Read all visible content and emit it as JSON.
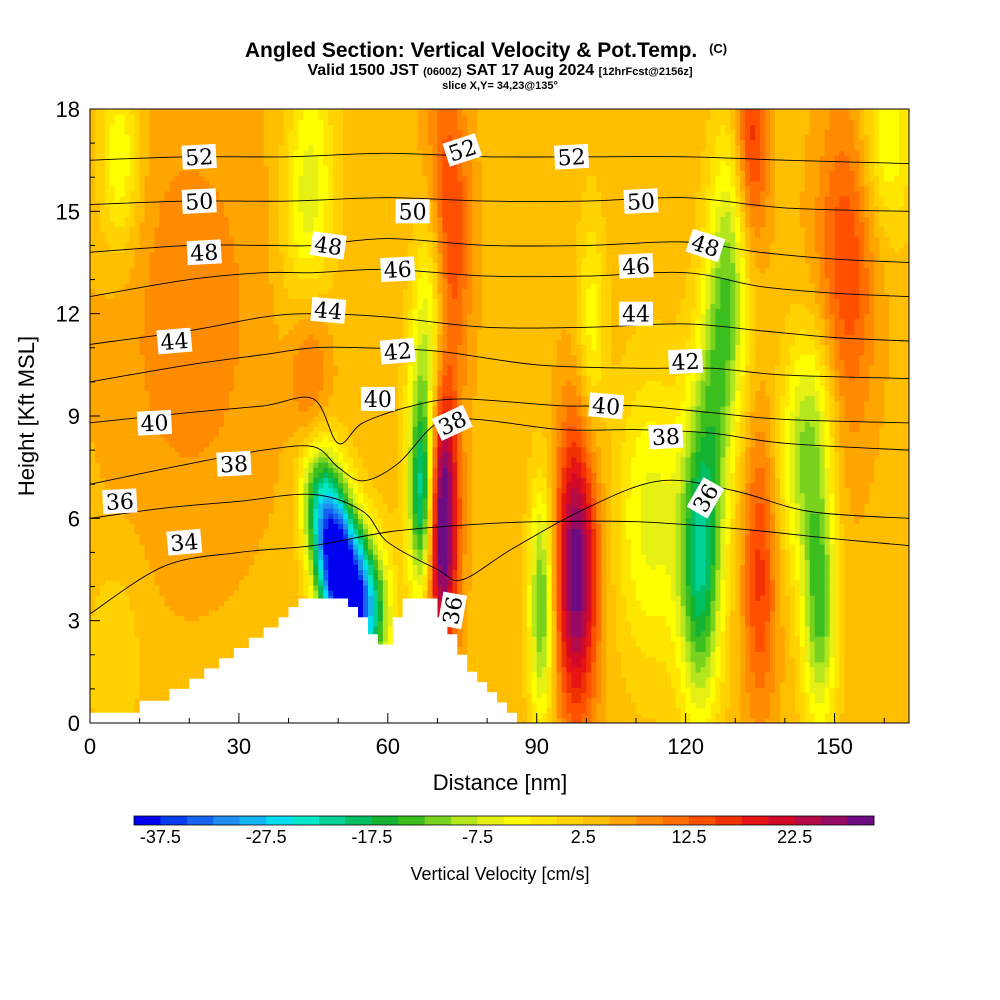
{
  "chart_data": {
    "type": "heatmap",
    "title": {
      "main": "Angled Section: Vertical Velocity & Pot.Temp.",
      "main_suffix": "(C)",
      "line2_a": "Valid 1500 JST",
      "line2_small1": "(0600Z)",
      "line2_b": "SAT 17 Aug 2024",
      "line2_small2": "[12hrFcst@2156z]",
      "line3": "slice X,Y= 34,23@135°"
    },
    "xlabel": "Distance [nm]",
    "ylabel": "Height [Kft MSL]",
    "xlim": [
      0,
      165
    ],
    "ylim": [
      0,
      18
    ],
    "x_ticks": [
      0,
      30,
      60,
      90,
      120,
      150
    ],
    "y_ticks": [
      0,
      3,
      6,
      9,
      12,
      15,
      18
    ],
    "colorbar": {
      "label": "Vertical Velocity [cm/s]",
      "tick_labels": [
        "-37.5",
        "-27.5",
        "-17.5",
        "-7.5",
        "2.5",
        "12.5",
        "22.5"
      ],
      "min": -40,
      "max": 30,
      "step": 2.5,
      "colors": [
        "#0000f0",
        "#0a3cf0",
        "#1464f0",
        "#1e8cf0",
        "#14b4f0",
        "#00dcf0",
        "#00e6c8",
        "#00d296",
        "#00be64",
        "#14b432",
        "#3cbe1e",
        "#78d21e",
        "#b4e61e",
        "#e6f014",
        "#ffff00",
        "#ffe600",
        "#ffd200",
        "#ffbe00",
        "#ffa500",
        "#ff8c00",
        "#ff6e00",
        "#ff5000",
        "#f03200",
        "#e61414",
        "#d20a28",
        "#b40a46",
        "#960a64",
        "#6e0a82"
      ]
    },
    "background_w": 4,
    "w_features": [
      {
        "x": 50,
        "z": 4.5,
        "amp": -40,
        "sx": 3.0,
        "sz": 1.8,
        "tilt": -0.5
      },
      {
        "x": 55,
        "z": 3.5,
        "amp": -30,
        "sx": 3.5,
        "sz": 1.5,
        "tilt": -0.3
      },
      {
        "x": 46,
        "z": 6.5,
        "amp": -18,
        "sx": 3.0,
        "sz": 1.6,
        "tilt": -0.6
      },
      {
        "x": 67,
        "z": 6.5,
        "amp": -22,
        "sx": 1.8,
        "sz": 2.0,
        "tilt": 0.0
      },
      {
        "x": 71,
        "z": 6.0,
        "amp": 30,
        "sx": 2.2,
        "sz": 2.8,
        "tilt": 0.0
      },
      {
        "x": 72,
        "z": 15.0,
        "amp": 14,
        "sx": 3.0,
        "sz": 3.0,
        "tilt": -0.15
      },
      {
        "x": 68,
        "z": 11.0,
        "amp": -14,
        "sx": 2.5,
        "sz": 3.5,
        "tilt": 0.3
      },
      {
        "x": 44,
        "z": 15.0,
        "amp": -12,
        "sx": 3.5,
        "sz": 3.0,
        "tilt": 0.15
      },
      {
        "x": 44,
        "z": 10.0,
        "amp": 10,
        "sx": 3.0,
        "sz": 2.5,
        "tilt": 0.0
      },
      {
        "x": 91,
        "z": 3.5,
        "amp": -18,
        "sx": 1.8,
        "sz": 2.5,
        "tilt": 0.0
      },
      {
        "x": 98,
        "z": 4.5,
        "amp": 26,
        "sx": 3.0,
        "sz": 3.0,
        "tilt": 0.0
      },
      {
        "x": 101,
        "z": 11.5,
        "amp": -8,
        "sx": 2.0,
        "sz": 2.5,
        "tilt": 0.0
      },
      {
        "x": 113,
        "z": 6.0,
        "amp": -10,
        "sx": 5.0,
        "sz": 3.0,
        "tilt": 0.0
      },
      {
        "x": 123,
        "z": 4.5,
        "amp": -20,
        "sx": 3.0,
        "sz": 3.0,
        "tilt": 0.0
      },
      {
        "x": 128,
        "z": 12.0,
        "amp": -18,
        "sx": 3.5,
        "sz": 4.5,
        "tilt": 0.5
      },
      {
        "x": 133,
        "z": 17.0,
        "amp": 18,
        "sx": 2.5,
        "sz": 2.5,
        "tilt": 0.0
      },
      {
        "x": 135,
        "z": 4.5,
        "amp": 12,
        "sx": 2.5,
        "sz": 3.0,
        "tilt": 0.0
      },
      {
        "x": 145,
        "z": 8.5,
        "amp": -16,
        "sx": 4.0,
        "sz": 2.5,
        "tilt": 0.4
      },
      {
        "x": 147,
        "z": 3.5,
        "amp": -18,
        "sx": 2.5,
        "sz": 2.5,
        "tilt": 0.0
      },
      {
        "x": 152,
        "z": 13.0,
        "amp": 12,
        "sx": 4.5,
        "sz": 4.0,
        "tilt": 0.3
      },
      {
        "x": 20,
        "z": 12.0,
        "amp": 5,
        "sx": 12.0,
        "sz": 5.0,
        "tilt": 0.0
      },
      {
        "x": 160,
        "z": 17.0,
        "amp": -10,
        "sx": 4.0,
        "sz": 2.0,
        "tilt": 0.0
      },
      {
        "x": 6,
        "z": 16.5,
        "amp": -10,
        "sx": 3.0,
        "sz": 2.0,
        "tilt": 0.0
      },
      {
        "x": 5,
        "z": 2.0,
        "amp": -4,
        "sx": 4.0,
        "sz": 2.0,
        "tilt": 0.0
      }
    ],
    "terrain": [
      [
        0,
        0.3
      ],
      [
        10,
        0.3
      ],
      [
        10,
        0.65
      ],
      [
        16,
        0.65
      ],
      [
        16,
        1.0
      ],
      [
        20,
        1.0
      ],
      [
        20,
        1.3
      ],
      [
        23,
        1.3
      ],
      [
        23,
        1.6
      ],
      [
        26,
        1.6
      ],
      [
        26,
        1.9
      ],
      [
        29,
        1.9
      ],
      [
        29,
        2.2
      ],
      [
        32,
        2.2
      ],
      [
        32,
        2.5
      ],
      [
        35,
        2.5
      ],
      [
        35,
        2.8
      ],
      [
        38,
        2.8
      ],
      [
        38,
        3.1
      ],
      [
        40,
        3.1
      ],
      [
        40,
        3.4
      ],
      [
        42,
        3.4
      ],
      [
        42,
        3.65
      ],
      [
        52,
        3.65
      ],
      [
        52,
        3.4
      ],
      [
        54,
        3.4
      ],
      [
        54,
        3.1
      ],
      [
        56,
        3.1
      ],
      [
        56,
        2.6
      ],
      [
        58,
        2.6
      ],
      [
        58,
        2.3
      ],
      [
        61,
        2.3
      ],
      [
        61,
        3.1
      ],
      [
        63,
        3.1
      ],
      [
        63,
        3.65
      ],
      [
        70,
        3.65
      ],
      [
        70,
        3.1
      ],
      [
        72,
        3.1
      ],
      [
        72,
        2.6
      ],
      [
        74,
        2.6
      ],
      [
        74,
        2.0
      ],
      [
        76,
        2.0
      ],
      [
        76,
        1.5
      ],
      [
        78,
        1.5
      ],
      [
        78,
        1.2
      ],
      [
        80,
        1.2
      ],
      [
        80,
        0.9
      ],
      [
        82,
        0.9
      ],
      [
        82,
        0.6
      ],
      [
        84,
        0.6
      ],
      [
        84,
        0.3
      ],
      [
        86,
        0.3
      ],
      [
        86,
        0.0
      ]
    ],
    "isentropes": [
      {
        "value": 34,
        "label": "34",
        "pts": [
          [
            0,
            3.2
          ],
          [
            15,
            4.6
          ],
          [
            30,
            5.0
          ],
          [
            45,
            5.2
          ],
          [
            60,
            5.6
          ],
          [
            75,
            5.8
          ],
          [
            90,
            5.9
          ],
          [
            110,
            5.9
          ],
          [
            130,
            5.7
          ],
          [
            150,
            5.4
          ],
          [
            165,
            5.2
          ]
        ]
      },
      {
        "value": 36,
        "label": "36",
        "pts": [
          [
            0,
            6.0
          ],
          [
            15,
            6.3
          ],
          [
            30,
            6.5
          ],
          [
            45,
            6.7
          ],
          [
            55,
            6.2
          ],
          [
            60,
            5.3
          ],
          [
            70,
            4.5
          ],
          [
            75,
            4.2
          ],
          [
            85,
            5.1
          ],
          [
            100,
            6.3
          ],
          [
            115,
            7.1
          ],
          [
            130,
            6.8
          ],
          [
            145,
            6.2
          ],
          [
            165,
            6.0
          ]
        ]
      },
      {
        "value": 38,
        "label": "38",
        "pts": [
          [
            0,
            7.0
          ],
          [
            20,
            7.6
          ],
          [
            35,
            8.0
          ],
          [
            45,
            8.1
          ],
          [
            50,
            7.5
          ],
          [
            55,
            7.1
          ],
          [
            62,
            7.6
          ],
          [
            70,
            8.8
          ],
          [
            78,
            8.9
          ],
          [
            95,
            8.6
          ],
          [
            110,
            8.6
          ],
          [
            125,
            8.5
          ],
          [
            140,
            8.2
          ],
          [
            165,
            8.0
          ]
        ]
      },
      {
        "value": 40,
        "label": "40",
        "pts": [
          [
            0,
            8.8
          ],
          [
            20,
            9.1
          ],
          [
            35,
            9.3
          ],
          [
            45,
            9.5
          ],
          [
            50,
            8.2
          ],
          [
            55,
            8.8
          ],
          [
            65,
            9.3
          ],
          [
            75,
            9.5
          ],
          [
            95,
            9.3
          ],
          [
            110,
            9.3
          ],
          [
            125,
            9.1
          ],
          [
            140,
            8.9
          ],
          [
            165,
            8.8
          ]
        ]
      },
      {
        "value": 42,
        "label": "42",
        "pts": [
          [
            0,
            10.0
          ],
          [
            20,
            10.5
          ],
          [
            35,
            10.8
          ],
          [
            45,
            11.0
          ],
          [
            55,
            11.0
          ],
          [
            70,
            10.9
          ],
          [
            90,
            10.5
          ],
          [
            110,
            10.4
          ],
          [
            125,
            10.4
          ],
          [
            140,
            10.2
          ],
          [
            165,
            10.1
          ]
        ]
      },
      {
        "value": 44,
        "label": "44",
        "pts": [
          [
            0,
            11.1
          ],
          [
            20,
            11.5
          ],
          [
            35,
            11.9
          ],
          [
            45,
            12.0
          ],
          [
            60,
            11.9
          ],
          [
            80,
            11.6
          ],
          [
            100,
            11.6
          ],
          [
            120,
            11.7
          ],
          [
            135,
            11.5
          ],
          [
            150,
            11.3
          ],
          [
            165,
            11.2
          ]
        ]
      },
      {
        "value": 46,
        "label": "46",
        "pts": [
          [
            0,
            12.5
          ],
          [
            20,
            13.0
          ],
          [
            35,
            13.2
          ],
          [
            45,
            13.2
          ],
          [
            60,
            13.3
          ],
          [
            80,
            13.1
          ],
          [
            100,
            13.1
          ],
          [
            120,
            13.2
          ],
          [
            135,
            12.8
          ],
          [
            150,
            12.6
          ],
          [
            165,
            12.5
          ]
        ]
      },
      {
        "value": 48,
        "label": "48",
        "pts": [
          [
            0,
            13.8
          ],
          [
            20,
            14.0
          ],
          [
            35,
            14.0
          ],
          [
            45,
            14.0
          ],
          [
            60,
            14.2
          ],
          [
            80,
            14.0
          ],
          [
            100,
            14.0
          ],
          [
            120,
            14.1
          ],
          [
            135,
            13.8
          ],
          [
            150,
            13.6
          ],
          [
            165,
            13.5
          ]
        ]
      },
      {
        "value": 50,
        "label": "50",
        "pts": [
          [
            0,
            15.2
          ],
          [
            20,
            15.3
          ],
          [
            40,
            15.3
          ],
          [
            60,
            15.4
          ],
          [
            80,
            15.3
          ],
          [
            100,
            15.3
          ],
          [
            120,
            15.4
          ],
          [
            140,
            15.1
          ],
          [
            165,
            15.0
          ]
        ]
      },
      {
        "value": 52,
        "label": "52",
        "pts": [
          [
            0,
            16.5
          ],
          [
            20,
            16.6
          ],
          [
            40,
            16.6
          ],
          [
            60,
            16.7
          ],
          [
            80,
            16.6
          ],
          [
            100,
            16.6
          ],
          [
            120,
            16.6
          ],
          [
            140,
            16.5
          ],
          [
            165,
            16.4
          ]
        ]
      }
    ],
    "contour_labels": [
      {
        "text": "52",
        "x": 22,
        "z": 16.6,
        "rot": -3
      },
      {
        "text": "52",
        "x": 75,
        "z": 16.8,
        "rot": -18
      },
      {
        "text": "52",
        "x": 97,
        "z": 16.6,
        "rot": -3
      },
      {
        "text": "50",
        "x": 22,
        "z": 15.3,
        "rot": -3
      },
      {
        "text": "50",
        "x": 65,
        "z": 15.0,
        "rot": 0
      },
      {
        "text": "50",
        "x": 111,
        "z": 15.3,
        "rot": -3
      },
      {
        "text": "48",
        "x": 23,
        "z": 13.8,
        "rot": -3
      },
      {
        "text": "48",
        "x": 48,
        "z": 14.0,
        "rot": 8
      },
      {
        "text": "48",
        "x": 124,
        "z": 14.0,
        "rot": 18
      },
      {
        "text": "46",
        "x": 62,
        "z": 13.3,
        "rot": -3
      },
      {
        "text": "46",
        "x": 110,
        "z": 13.4,
        "rot": -3
      },
      {
        "text": "44",
        "x": 48,
        "z": 12.1,
        "rot": 5
      },
      {
        "text": "44",
        "x": 110,
        "z": 12.0,
        "rot": 0
      },
      {
        "text": "44",
        "x": 17,
        "z": 11.2,
        "rot": -5
      },
      {
        "text": "42",
        "x": 62,
        "z": 10.9,
        "rot": -5
      },
      {
        "text": "42",
        "x": 120,
        "z": 10.6,
        "rot": -3
      },
      {
        "text": "40",
        "x": 13,
        "z": 8.8,
        "rot": -3
      },
      {
        "text": "40",
        "x": 58,
        "z": 9.5,
        "rot": 0
      },
      {
        "text": "40",
        "x": 104,
        "z": 9.3,
        "rot": 5
      },
      {
        "text": "38",
        "x": 73,
        "z": 8.8,
        "rot": -25
      },
      {
        "text": "38",
        "x": 116,
        "z": 8.4,
        "rot": -3
      },
      {
        "text": "38",
        "x": 29,
        "z": 7.6,
        "rot": -3
      },
      {
        "text": "36",
        "x": 6,
        "z": 6.5,
        "rot": -3
      },
      {
        "text": "36",
        "x": 124,
        "z": 6.6,
        "rot": -60
      },
      {
        "text": "36",
        "x": 73,
        "z": 3.3,
        "rot": -80
      },
      {
        "text": "34",
        "x": 19,
        "z": 5.3,
        "rot": -5
      }
    ]
  }
}
